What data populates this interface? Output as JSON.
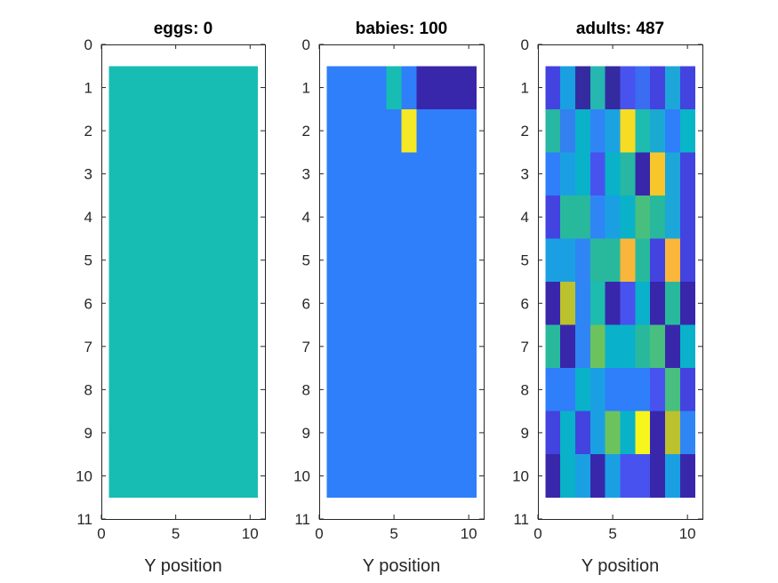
{
  "chart_data": [
    {
      "type": "heatmap",
      "title": "eggs: 0",
      "xlabel": "Y position",
      "ylabel": "",
      "xlim": [
        0,
        11
      ],
      "ylim": [
        0,
        11
      ],
      "y_reversed": true,
      "xticks": [
        0,
        5,
        10
      ],
      "yticks": [
        0,
        1,
        2,
        3,
        4,
        5,
        6,
        7,
        8,
        9,
        10,
        11
      ],
      "cell_colors": [
        [
          "#17bdb3",
          "#17bdb3",
          "#17bdb3",
          "#17bdb3",
          "#17bdb3",
          "#17bdb3",
          "#17bdb3",
          "#17bdb3",
          "#17bdb3",
          "#17bdb3"
        ],
        [
          "#17bdb3",
          "#17bdb3",
          "#17bdb3",
          "#17bdb3",
          "#17bdb3",
          "#17bdb3",
          "#17bdb3",
          "#17bdb3",
          "#17bdb3",
          "#17bdb3"
        ],
        [
          "#17bdb3",
          "#17bdb3",
          "#17bdb3",
          "#17bdb3",
          "#17bdb3",
          "#17bdb3",
          "#17bdb3",
          "#17bdb3",
          "#17bdb3",
          "#17bdb3"
        ],
        [
          "#17bdb3",
          "#17bdb3",
          "#17bdb3",
          "#17bdb3",
          "#17bdb3",
          "#17bdb3",
          "#17bdb3",
          "#17bdb3",
          "#17bdb3",
          "#17bdb3"
        ],
        [
          "#17bdb3",
          "#17bdb3",
          "#17bdb3",
          "#17bdb3",
          "#17bdb3",
          "#17bdb3",
          "#17bdb3",
          "#17bdb3",
          "#17bdb3",
          "#17bdb3"
        ],
        [
          "#17bdb3",
          "#17bdb3",
          "#17bdb3",
          "#17bdb3",
          "#17bdb3",
          "#17bdb3",
          "#17bdb3",
          "#17bdb3",
          "#17bdb3",
          "#17bdb3"
        ],
        [
          "#17bdb3",
          "#17bdb3",
          "#17bdb3",
          "#17bdb3",
          "#17bdb3",
          "#17bdb3",
          "#17bdb3",
          "#17bdb3",
          "#17bdb3",
          "#17bdb3"
        ],
        [
          "#17bdb3",
          "#17bdb3",
          "#17bdb3",
          "#17bdb3",
          "#17bdb3",
          "#17bdb3",
          "#17bdb3",
          "#17bdb3",
          "#17bdb3",
          "#17bdb3"
        ],
        [
          "#17bdb3",
          "#17bdb3",
          "#17bdb3",
          "#17bdb3",
          "#17bdb3",
          "#17bdb3",
          "#17bdb3",
          "#17bdb3",
          "#17bdb3",
          "#17bdb3"
        ],
        [
          "#17bdb3",
          "#17bdb3",
          "#17bdb3",
          "#17bdb3",
          "#17bdb3",
          "#17bdb3",
          "#17bdb3",
          "#17bdb3",
          "#17bdb3",
          "#17bdb3"
        ]
      ]
    },
    {
      "type": "heatmap",
      "title": "babies: 100",
      "xlabel": "Y position",
      "ylabel": "",
      "xlim": [
        0,
        11
      ],
      "ylim": [
        0,
        11
      ],
      "y_reversed": true,
      "xticks": [
        0,
        5,
        10
      ],
      "yticks": [
        0,
        1,
        2,
        3,
        4,
        5,
        6,
        7,
        8,
        9,
        10,
        11
      ],
      "cell_colors": [
        [
          "#2f7efa",
          "#2f7efa",
          "#2f7efa",
          "#2f7efa",
          "#17bdb3",
          "#2f7efa",
          "#3827ab",
          "#3827ab",
          "#3827ab",
          "#3827ab"
        ],
        [
          "#2f7efa",
          "#2f7efa",
          "#2f7efa",
          "#2f7efa",
          "#2f7efa",
          "#f5e826",
          "#2f7efa",
          "#2f7efa",
          "#2f7efa",
          "#2f7efa"
        ],
        [
          "#2f7efa",
          "#2f7efa",
          "#2f7efa",
          "#2f7efa",
          "#2f7efa",
          "#2f7efa",
          "#2f7efa",
          "#2f7efa",
          "#2f7efa",
          "#2f7efa"
        ],
        [
          "#2f7efa",
          "#2f7efa",
          "#2f7efa",
          "#2f7efa",
          "#2f7efa",
          "#2f7efa",
          "#2f7efa",
          "#2f7efa",
          "#2f7efa",
          "#2f7efa"
        ],
        [
          "#2f7efa",
          "#2f7efa",
          "#2f7efa",
          "#2f7efa",
          "#2f7efa",
          "#2f7efa",
          "#2f7efa",
          "#2f7efa",
          "#2f7efa",
          "#2f7efa"
        ],
        [
          "#2f7efa",
          "#2f7efa",
          "#2f7efa",
          "#2f7efa",
          "#2f7efa",
          "#2f7efa",
          "#2f7efa",
          "#2f7efa",
          "#2f7efa",
          "#2f7efa"
        ],
        [
          "#2f7efa",
          "#2f7efa",
          "#2f7efa",
          "#2f7efa",
          "#2f7efa",
          "#2f7efa",
          "#2f7efa",
          "#2f7efa",
          "#2f7efa",
          "#2f7efa"
        ],
        [
          "#2f7efa",
          "#2f7efa",
          "#2f7efa",
          "#2f7efa",
          "#2f7efa",
          "#2f7efa",
          "#2f7efa",
          "#2f7efa",
          "#2f7efa",
          "#2f7efa"
        ],
        [
          "#2f7efa",
          "#2f7efa",
          "#2f7efa",
          "#2f7efa",
          "#2f7efa",
          "#2f7efa",
          "#2f7efa",
          "#2f7efa",
          "#2f7efa",
          "#2f7efa"
        ],
        [
          "#2f7efa",
          "#2f7efa",
          "#2f7efa",
          "#2f7efa",
          "#2f7efa",
          "#2f7efa",
          "#2f7efa",
          "#2f7efa",
          "#2f7efa",
          "#2f7efa"
        ]
      ]
    },
    {
      "type": "heatmap",
      "title": "adults: 487",
      "xlabel": "Y position",
      "ylabel": "",
      "xlim": [
        0,
        11
      ],
      "ylim": [
        0,
        11
      ],
      "y_reversed": true,
      "xticks": [
        0,
        5,
        10
      ],
      "yticks": [
        0,
        1,
        2,
        3,
        4,
        5,
        6,
        7,
        8,
        9,
        10,
        11
      ],
      "cell_colors": [
        [
          "#4343e0",
          "#1aa0e2",
          "#352ba0",
          "#25b7b0",
          "#352ba0",
          "#4853ef",
          "#3a6df2",
          "#4543e0",
          "#1ca7d8",
          "#4343e0"
        ],
        [
          "#27b7a3",
          "#3380ef",
          "#09b2c8",
          "#3085f5",
          "#1ba2e0",
          "#f6dc23",
          "#1ebbaf",
          "#1aaad1",
          "#2f7efa",
          "#09b6c8"
        ],
        [
          "#2f7efa",
          "#1aa0e2",
          "#09b2c8",
          "#4853ef",
          "#09b2c8",
          "#27b7a3",
          "#3827ab",
          "#f6c62b",
          "#1ca7d8",
          "#4343e0"
        ],
        [
          "#4343e0",
          "#28b99d",
          "#28b99d",
          "#3085f5",
          "#1aa0e2",
          "#09b2c8",
          "#48be7f",
          "#28b99d",
          "#1ca7d8",
          "#4343e0"
        ],
        [
          "#1aa0e2",
          "#1aa0e2",
          "#3085f5",
          "#28b99d",
          "#28b99d",
          "#f9b63a",
          "#28b99d",
          "#4343e0",
          "#f9b63a",
          "#4343e0"
        ],
        [
          "#3827ab",
          "#bcc12e",
          "#3085f5",
          "#1ebbaf",
          "#3827ab",
          "#4853ef",
          "#0ab1cb",
          "#3827ab",
          "#28b99d",
          "#3827ab"
        ],
        [
          "#28b99d",
          "#3827ab",
          "#3085f5",
          "#6cc35e",
          "#0ab1cb",
          "#0ab1cb",
          "#28b99d",
          "#48be7f",
          "#3827ab",
          "#0ab1cb"
        ],
        [
          "#2f7efa",
          "#2f7efa",
          "#09b2c8",
          "#1aa0e2",
          "#2f7efa",
          "#2f7efa",
          "#2f7efa",
          "#4853ef",
          "#48be7f",
          "#4343e0"
        ],
        [
          "#4343e0",
          "#09b2c8",
          "#4343e0",
          "#1aa0e2",
          "#6cc35e",
          "#09b2c8",
          "#f7f51e",
          "#3827ab",
          "#bcc12e",
          "#3085f5"
        ],
        [
          "#3827ab",
          "#09b2c8",
          "#1aa0e2",
          "#3827ab",
          "#1aa0e2",
          "#4853ef",
          "#4853ef",
          "#3827ab",
          "#1aa0e2",
          "#3827ab"
        ]
      ]
    }
  ]
}
